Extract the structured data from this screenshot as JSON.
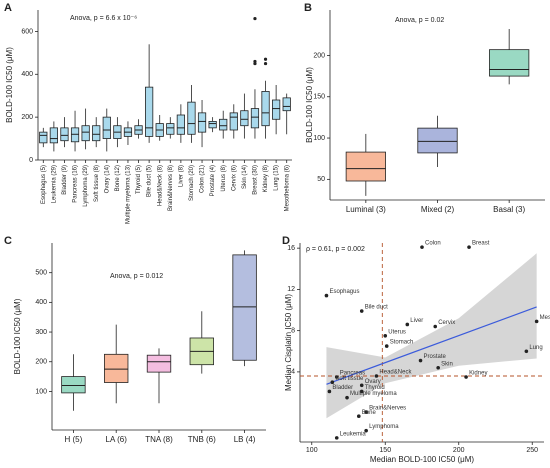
{
  "chart_data": [
    {
      "type": "box",
      "panel": "A",
      "annotation": "Anova, p = 6.6 x 10⁻⁶",
      "ylabel": "BOLD-100 IC50 (μM)",
      "color": "#a9d9ec",
      "categories": [
        "Esophagus (5)",
        "Leukemia (29)",
        "Bladder (9)",
        "Pancreas (16)",
        "Lymphoma (29)",
        "Soft tissue (8)",
        "Ovary (14)",
        "Bone (12)",
        "Multiple myeloma (13)",
        "Thyroid (5)",
        "Bile duct (5)",
        "Head&Neck (8)",
        "Brain&Nerves (8)",
        "Liver (8)",
        "Stomach (20)",
        "Colon (21)",
        "Prostate (4)",
        "Uterus (8)",
        "Cervix (6)",
        "Skin (14)",
        "Breast (30)",
        "Kidney (8)",
        "Lung (15)",
        "Mesothelioma (6)"
      ],
      "boxes": [
        {
          "min": 60,
          "q1": 80,
          "median": 115,
          "q3": 130,
          "max": 150
        },
        {
          "min": 40,
          "q1": 80,
          "median": 100,
          "q3": 150,
          "max": 180
        },
        {
          "min": 60,
          "q1": 90,
          "median": 115,
          "q3": 150,
          "max": 200
        },
        {
          "min": 40,
          "q1": 85,
          "median": 120,
          "q3": 150,
          "max": 230
        },
        {
          "min": 50,
          "q1": 90,
          "median": 130,
          "q3": 160,
          "max": 240
        },
        {
          "min": 60,
          "q1": 90,
          "median": 120,
          "q3": 160,
          "max": 200
        },
        {
          "min": 40,
          "q1": 100,
          "median": 140,
          "q3": 200,
          "max": 240
        },
        {
          "min": 60,
          "q1": 100,
          "median": 130,
          "q3": 160,
          "max": 200
        },
        {
          "min": 70,
          "q1": 110,
          "median": 130,
          "q3": 150,
          "max": 180
        },
        {
          "min": 100,
          "q1": 120,
          "median": 140,
          "q3": 160,
          "max": 190
        },
        {
          "min": 80,
          "q1": 110,
          "median": 150,
          "q3": 340,
          "max": 540
        },
        {
          "min": 90,
          "q1": 110,
          "median": 140,
          "q3": 170,
          "max": 210
        },
        {
          "min": 100,
          "q1": 120,
          "median": 150,
          "q3": 170,
          "max": 200
        },
        {
          "min": 80,
          "q1": 120,
          "median": 150,
          "q3": 210,
          "max": 260
        },
        {
          "min": 80,
          "q1": 120,
          "median": 170,
          "q3": 270,
          "max": 350
        },
        {
          "min": 60,
          "q1": 130,
          "median": 180,
          "q3": 220,
          "max": 280
        },
        {
          "min": 130,
          "q1": 150,
          "median": 170,
          "q3": 180,
          "max": 200
        },
        {
          "min": 100,
          "q1": 140,
          "median": 160,
          "q3": 190,
          "max": 230
        },
        {
          "min": 100,
          "q1": 140,
          "median": 200,
          "q3": 220,
          "max": 260
        },
        {
          "min": 100,
          "q1": 160,
          "median": 190,
          "q3": 230,
          "max": 310
        },
        {
          "min": 100,
          "q1": 150,
          "median": 200,
          "q3": 240,
          "max": 330
        },
        {
          "min": 100,
          "q1": 160,
          "median": 220,
          "q3": 320,
          "max": 370
        },
        {
          "min": 120,
          "q1": 190,
          "median": 240,
          "q3": 280,
          "max": 350
        },
        {
          "min": 120,
          "q1": 230,
          "median": 250,
          "q3": 290,
          "max": 310
        }
      ],
      "outliers": [
        [],
        [],
        [],
        [],
        [],
        [],
        [],
        [],
        [],
        [],
        [],
        [],
        [],
        [],
        [],
        [],
        [],
        [],
        [],
        [],
        [
          660,
          460,
          450
        ],
        [
          470,
          450
        ],
        [],
        []
      ],
      "ylim": [
        0,
        700
      ],
      "yticks": [
        0,
        200,
        400,
        600
      ]
    },
    {
      "type": "box",
      "panel": "B",
      "annotation": "Anova, p = 0.02",
      "ylabel": "BOLD-100 IC50 (μM)",
      "categories": [
        "Luminal (3)",
        "Mixed (2)",
        "Basal (3)"
      ],
      "colors": [
        "#f8b89a",
        "#aab4dc",
        "#9ad9c3"
      ],
      "boxes": [
        {
          "min": 30,
          "q1": 48,
          "median": 63,
          "q3": 83,
          "max": 105
        },
        {
          "min": 65,
          "q1": 82,
          "median": 96,
          "q3": 112,
          "max": 127
        },
        {
          "min": 165,
          "q1": 175,
          "median": 183,
          "q3": 207,
          "max": 232
        }
      ],
      "ylim": [
        25,
        255
      ],
      "yticks": [
        50,
        100,
        150,
        200
      ]
    },
    {
      "type": "box",
      "panel": "C",
      "annotation": "Anova, p = 0.012",
      "ylabel": "BOLD-100 IC50 (μM)",
      "categories": [
        "H (5)",
        "LA (6)",
        "TNA (8)",
        "TNB (6)",
        "LB (4)"
      ],
      "colors": [
        "#9ad9c3",
        "#f8b89a",
        "#f4bde0",
        "#cde4a8",
        "#b4bedf"
      ],
      "boxes": [
        {
          "min": 35,
          "q1": 95,
          "median": 120,
          "q3": 150,
          "max": 225
        },
        {
          "min": 60,
          "q1": 130,
          "median": 175,
          "q3": 225,
          "max": 325
        },
        {
          "min": 60,
          "q1": 165,
          "median": 200,
          "q3": 222,
          "max": 245
        },
        {
          "min": 160,
          "q1": 190,
          "median": 235,
          "q3": 280,
          "max": 370
        },
        {
          "min": 185,
          "q1": 205,
          "median": 385,
          "q3": 560,
          "max": 575
        }
      ],
      "ylim": [
        -30,
        600
      ],
      "yticks": [
        100,
        200,
        300,
        400,
        500
      ]
    },
    {
      "type": "scatter",
      "panel": "D",
      "annotation": "ρ = 0.61, p = 0.002",
      "xlabel": "Median BOLD-100 IC50 (μM)",
      "ylabel": "Median Cisplatin IC50 (μM)",
      "labels": [
        "Esophagus",
        "Colon",
        "Breast",
        "Bile duct",
        "Liver",
        "Cervix",
        "Mesothelioma",
        "Lung",
        "Uterus",
        "Stomach",
        "Prostate",
        "Skin",
        "Kidney",
        "Pancreas",
        "Head&Neck",
        "Soft tissue",
        "Ovary",
        "Bladder",
        "Thyroid",
        "Multiple myeloma",
        "Brain&Nerves",
        "Bone",
        "Lymphoma",
        "Leukemia"
      ],
      "x": [
        110,
        175,
        207,
        134,
        165,
        184,
        253,
        246,
        150,
        151,
        174,
        186,
        205,
        117,
        144,
        114,
        134,
        112,
        134,
        124,
        137,
        132,
        137,
        117
      ],
      "y": [
        11.4,
        16.1,
        16.1,
        9.9,
        8.6,
        8.4,
        8.9,
        6.0,
        7.5,
        6.5,
        5.1,
        4.4,
        3.5,
        3.5,
        3.6,
        3.0,
        2.7,
        2.1,
        2.1,
        1.5,
        0.1,
        -0.3,
        -1.7,
        -2.4
      ],
      "color": "#222222",
      "fit": {
        "x": [
          110,
          253
        ],
        "y": [
          2.8,
          10.3
        ],
        "color": "#3b5bdb"
      },
      "ci": {
        "x": [
          110,
          150,
          200,
          253
        ],
        "lower": [
          -0.5,
          2.9,
          4.6,
          5.3
        ],
        "upper": [
          6.4,
          5.4,
          9.2,
          15.5
        ]
      },
      "ref_x": 148,
      "ref_y": 3.6,
      "xlim": [
        92,
        258
      ],
      "xticks": [
        100,
        150,
        200,
        250
      ],
      "ylim": [
        -2.8,
        16.5
      ],
      "yticks": [
        4,
        8,
        12,
        16
      ]
    }
  ]
}
